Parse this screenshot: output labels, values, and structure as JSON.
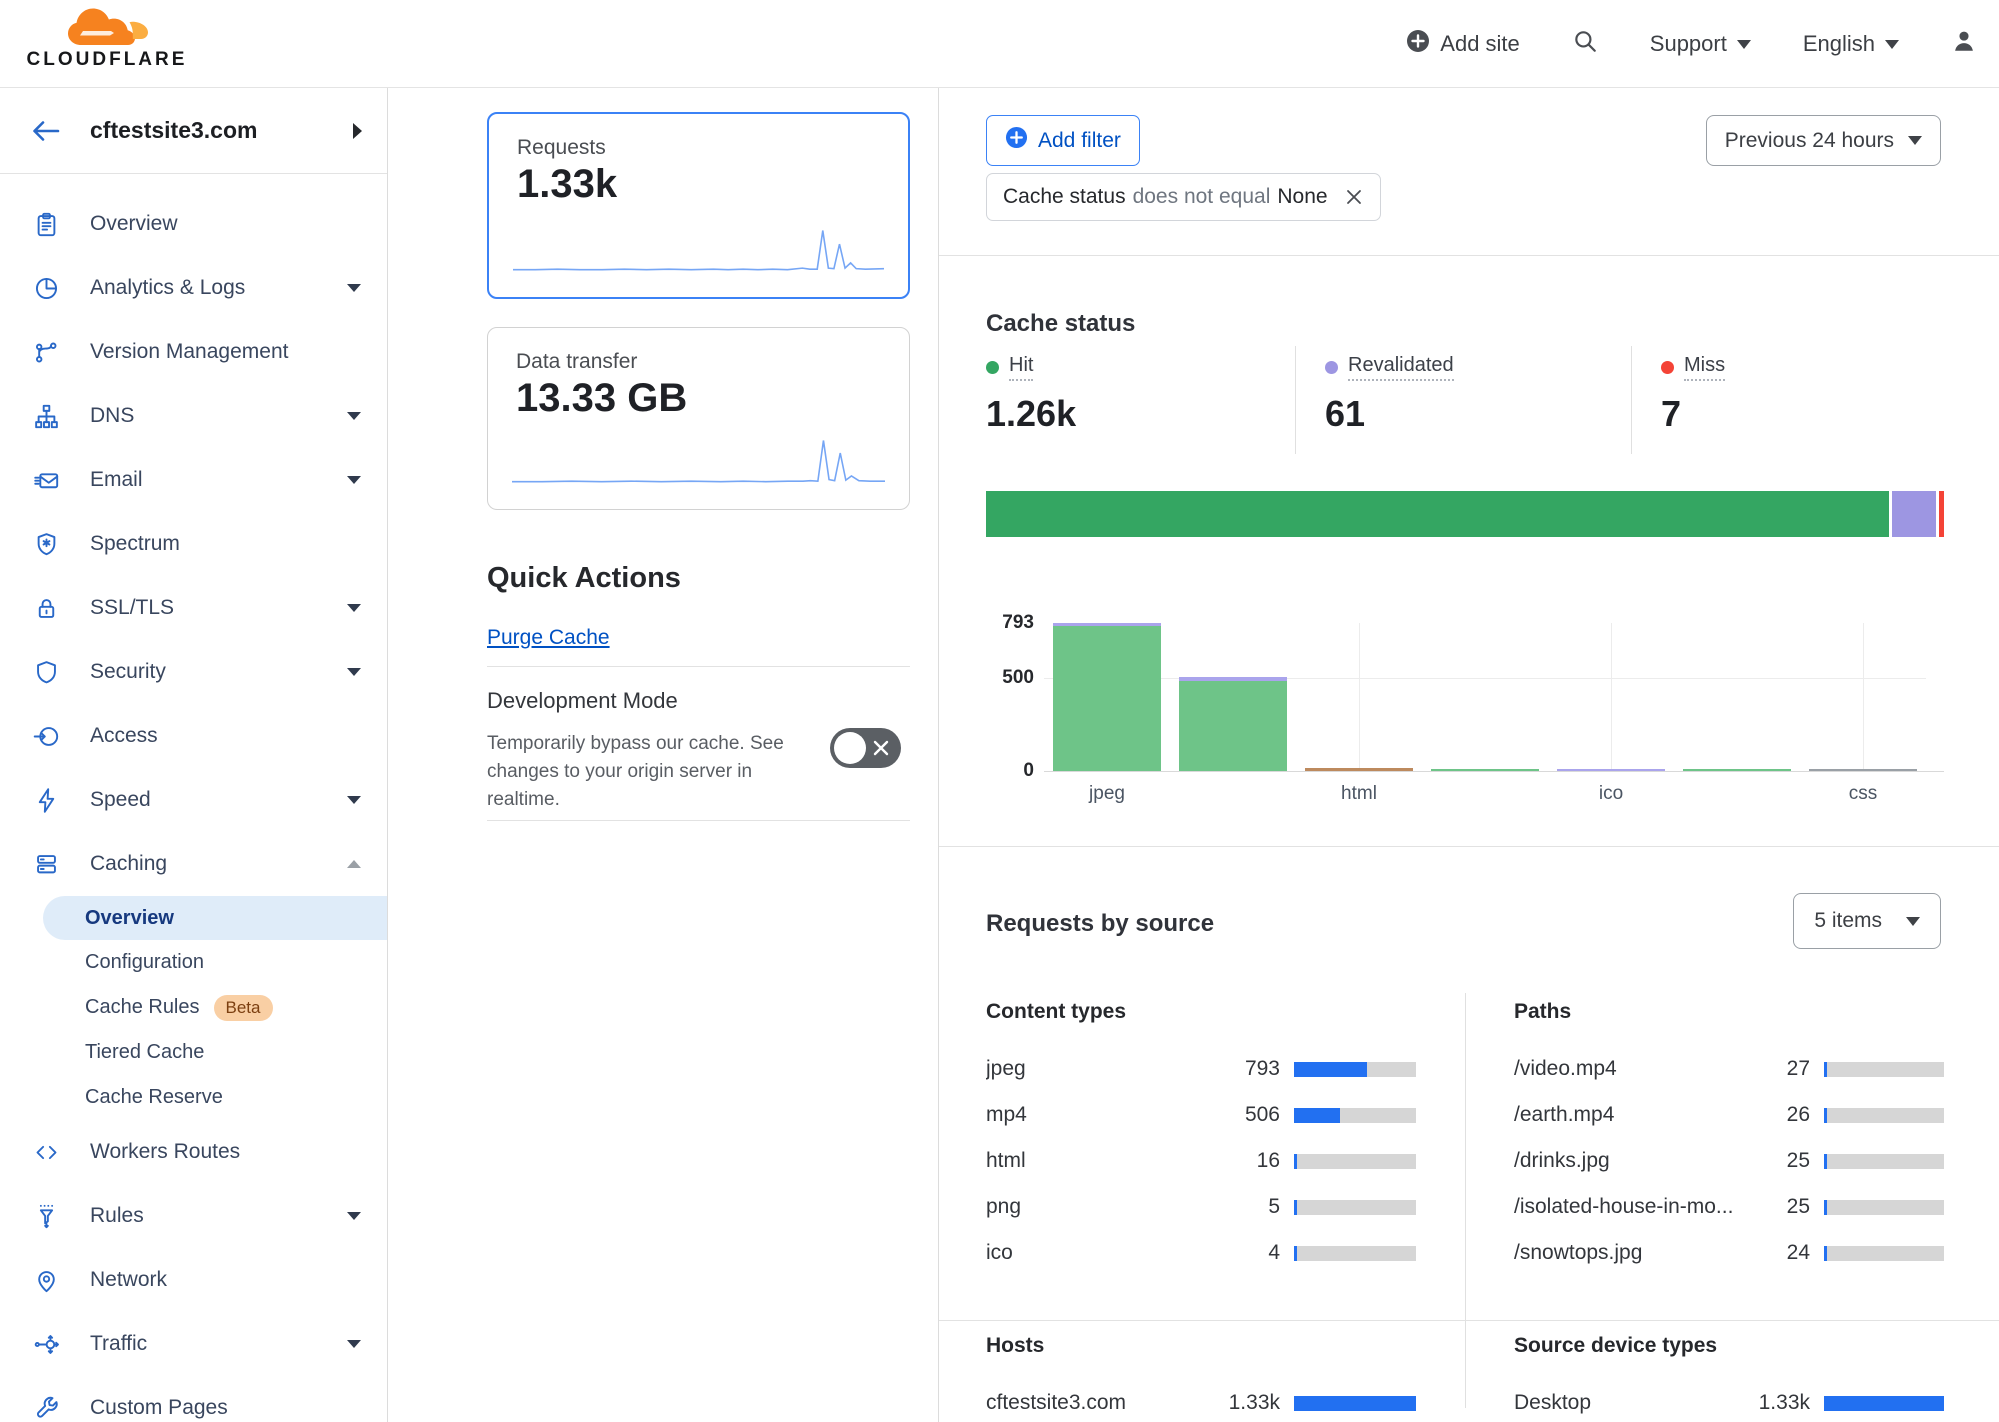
{
  "colors": {
    "accent_blue": "#0051c3",
    "selected_border": "#3b82f6",
    "bar_blue": "#2270f1",
    "hit_green": "#34a662",
    "revalidated_purple": "#9d96e2",
    "miss_red": "#f44336",
    "tan": "#bd8a5e",
    "sparkline_blue": "#76a6f5"
  },
  "header": {
    "logo_text": "CLOUDFLARE",
    "add_site_label": "Add site",
    "support_label": "Support",
    "language_label": "English"
  },
  "sidebar": {
    "site_name": "cftestsite3.com",
    "items": [
      {
        "label": "Overview",
        "icon": "clipboard-icon",
        "caret": false
      },
      {
        "label": "Analytics & Logs",
        "icon": "pie-chart-icon",
        "caret": true
      },
      {
        "label": "Version Management",
        "icon": "branch-icon",
        "caret": false
      },
      {
        "label": "DNS",
        "icon": "dns-tree-icon",
        "caret": true
      },
      {
        "label": "Email",
        "icon": "email-icon",
        "caret": true
      },
      {
        "label": "Spectrum",
        "icon": "spectrum-shield-icon",
        "caret": false
      },
      {
        "label": "SSL/TLS",
        "icon": "lock-icon",
        "caret": true
      },
      {
        "label": "Security",
        "icon": "shield-icon",
        "caret": true
      },
      {
        "label": "Access",
        "icon": "access-icon",
        "caret": false
      },
      {
        "label": "Speed",
        "icon": "lightning-icon",
        "caret": true
      },
      {
        "label": "Caching",
        "icon": "cache-server-icon",
        "caret": "up",
        "expanded": true,
        "children": [
          {
            "label": "Overview",
            "active": true
          },
          {
            "label": "Configuration"
          },
          {
            "label": "Cache Rules",
            "badge": "Beta"
          },
          {
            "label": "Tiered Cache"
          },
          {
            "label": "Cache Reserve"
          }
        ]
      },
      {
        "label": "Workers Routes",
        "icon": "code-brackets-icon",
        "caret": false
      },
      {
        "label": "Rules",
        "icon": "funnel-icon",
        "caret": true
      },
      {
        "label": "Network",
        "icon": "map-pin-icon",
        "caret": false
      },
      {
        "label": "Traffic",
        "icon": "traffic-icon",
        "caret": true
      },
      {
        "label": "Custom Pages",
        "icon": "wrench-icon",
        "caret": false
      }
    ]
  },
  "metrics": {
    "requests": {
      "label": "Requests",
      "value": "1.33k",
      "selected": true
    },
    "data_transfer": {
      "label": "Data transfer",
      "value": "13.33 GB",
      "selected": false
    }
  },
  "quick_actions": {
    "title": "Quick Actions",
    "purge_cache_label": "Purge Cache",
    "development_mode": {
      "title": "Development Mode",
      "description": "Temporarily bypass our cache. See changes to your origin server in realtime.",
      "state": "off"
    }
  },
  "filters": {
    "add_filter_label": "Add filter",
    "chip": {
      "field": "Cache status",
      "operator": "does not equal",
      "value": "None"
    },
    "time_range": "Previous 24 hours"
  },
  "cache_status": {
    "title": "Cache status",
    "stats": [
      {
        "label": "Hit",
        "value": "1.26k",
        "color": "#34a662"
      },
      {
        "label": "Revalidated",
        "value": "61",
        "color": "#9d96e2"
      },
      {
        "label": "Miss",
        "value": "7",
        "color": "#f44336"
      }
    ]
  },
  "requests_by_source": {
    "title": "Requests by source",
    "items_select": "5 items",
    "total_requests": 1333,
    "content_types": {
      "title": "Content types",
      "rows": [
        {
          "label": "jpeg",
          "display": "793",
          "value": 793
        },
        {
          "label": "mp4",
          "display": "506",
          "value": 506
        },
        {
          "label": "html",
          "display": "16",
          "value": 16
        },
        {
          "label": "png",
          "display": "5",
          "value": 5
        },
        {
          "label": "ico",
          "display": "4",
          "value": 4
        }
      ]
    },
    "paths": {
      "title": "Paths",
      "rows": [
        {
          "label": "/video.mp4",
          "display": "27",
          "value": 27
        },
        {
          "label": "/earth.mp4",
          "display": "26",
          "value": 26
        },
        {
          "label": "/drinks.jpg",
          "display": "25",
          "value": 25
        },
        {
          "label": "/isolated-house-in-mo...",
          "display": "25",
          "value": 25
        },
        {
          "label": "/snowtops.jpg",
          "display": "24",
          "value": 24
        }
      ]
    },
    "hosts": {
      "title": "Hosts",
      "rows": [
        {
          "label": "cftestsite3.com",
          "display": "1.33k",
          "value": 1333
        }
      ]
    },
    "devices": {
      "title": "Source device types",
      "rows": [
        {
          "label": "Desktop",
          "display": "1.33k",
          "value": 1333
        }
      ]
    }
  },
  "chart_data": [
    {
      "id": "requests-sparkline",
      "type": "line",
      "title": "Requests over previous 24 hours",
      "points": [
        [
          0,
          3
        ],
        [
          6,
          3
        ],
        [
          12,
          4
        ],
        [
          18,
          3
        ],
        [
          24,
          3
        ],
        [
          30,
          4
        ],
        [
          36,
          3
        ],
        [
          42,
          4
        ],
        [
          48,
          3
        ],
        [
          54,
          4
        ],
        [
          58,
          3
        ],
        [
          62,
          4
        ],
        [
          66,
          3
        ],
        [
          70,
          4
        ],
        [
          74,
          3
        ],
        [
          78,
          6
        ],
        [
          80,
          4
        ],
        [
          82,
          4
        ],
        [
          83.5,
          78
        ],
        [
          85,
          6
        ],
        [
          86.5,
          5
        ],
        [
          88,
          52
        ],
        [
          89.5,
          6
        ],
        [
          91,
          16
        ],
        [
          92.5,
          5
        ],
        [
          95,
          4
        ],
        [
          100,
          5
        ]
      ]
    },
    {
      "id": "data-transfer-sparkline",
      "type": "line",
      "title": "Data transfer over previous 24 hours",
      "points": [
        [
          0,
          3
        ],
        [
          8,
          3
        ],
        [
          16,
          4
        ],
        [
          24,
          3
        ],
        [
          32,
          4
        ],
        [
          40,
          3
        ],
        [
          48,
          4
        ],
        [
          56,
          3
        ],
        [
          62,
          4
        ],
        [
          68,
          3
        ],
        [
          74,
          4
        ],
        [
          78,
          4
        ],
        [
          80,
          5
        ],
        [
          82,
          4
        ],
        [
          83.5,
          82
        ],
        [
          85,
          7
        ],
        [
          86.5,
          5
        ],
        [
          88,
          58
        ],
        [
          89.5,
          6
        ],
        [
          91,
          14
        ],
        [
          93,
          5
        ],
        [
          96,
          4
        ],
        [
          100,
          4
        ]
      ]
    },
    {
      "id": "cache-status-distribution",
      "type": "bar",
      "orientation": "horizontal",
      "stacked": true,
      "series": [
        {
          "name": "Hit",
          "value": 1260,
          "color": "#34a662"
        },
        {
          "name": "Revalidated",
          "value": 61,
          "color": "#9d96e2"
        },
        {
          "name": "Miss",
          "value": 7,
          "color": "#f44336"
        }
      ]
    },
    {
      "id": "cache-status-by-content-type",
      "type": "bar",
      "stacked": true,
      "ylim": [
        0,
        793
      ],
      "yticks": [
        793,
        500,
        0
      ],
      "bars": [
        {
          "label": "jpeg",
          "show_label": true,
          "gridline": false,
          "segments": [
            {
              "series": "Hit",
              "value": 775,
              "color": "#6ec488"
            },
            {
              "series": "Revalidated",
              "value": 18,
              "color": "#aaa4ec"
            }
          ]
        },
        {
          "label": "mp4",
          "show_label": false,
          "gridline": false,
          "segments": [
            {
              "series": "Hit",
              "value": 482,
              "color": "#6ec488"
            },
            {
              "series": "Revalidated",
              "value": 24,
              "color": "#aaa4ec"
            }
          ]
        },
        {
          "label": "html",
          "show_label": true,
          "gridline": true,
          "segments": [
            {
              "series": "Other",
              "value": 16,
              "color": "#bd8a5e"
            }
          ]
        },
        {
          "label": "png",
          "show_label": false,
          "gridline": false,
          "segments": [
            {
              "series": "Hit",
              "value": 5,
              "color": "#6ec488"
            }
          ]
        },
        {
          "label": "ico",
          "show_label": true,
          "gridline": true,
          "segments": [
            {
              "series": "Revalidated",
              "value": 4,
              "color": "#aaa4ec"
            }
          ]
        },
        {
          "label": "",
          "show_label": false,
          "gridline": false,
          "segments": [
            {
              "series": "Hit",
              "value": 2,
              "color": "#6ec488"
            }
          ]
        },
        {
          "label": "css",
          "show_label": true,
          "gridline": true,
          "segments": [
            {
              "series": "Hit",
              "value": 1,
              "color": "#9aa0a6"
            }
          ]
        }
      ]
    }
  ]
}
